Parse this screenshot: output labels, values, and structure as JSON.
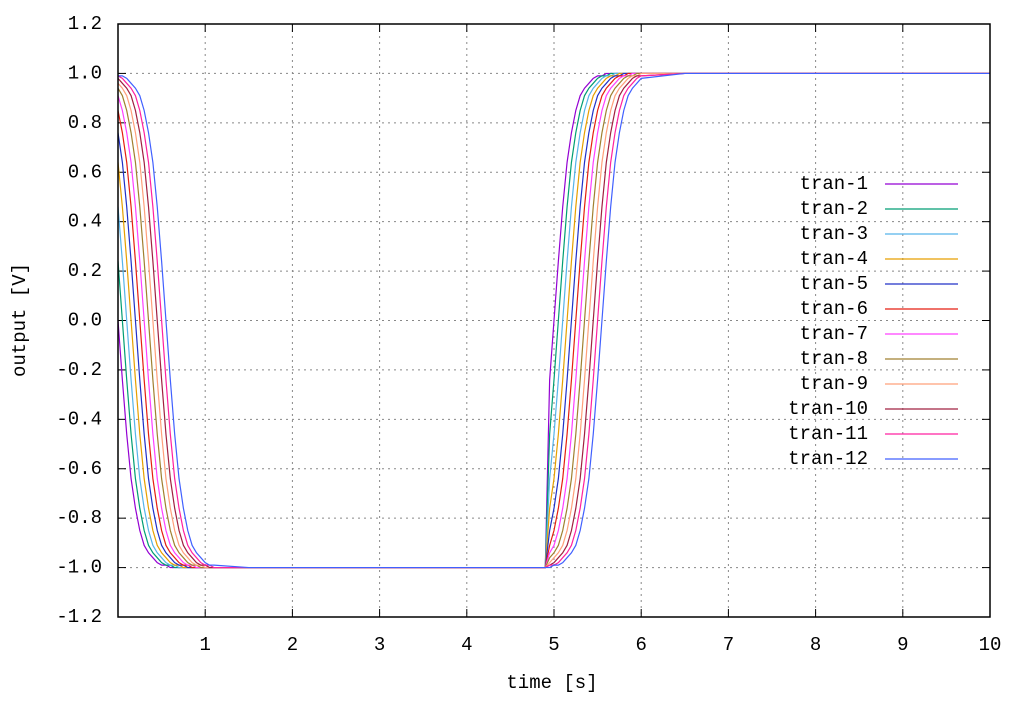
{
  "chart_data": {
    "type": "line",
    "x_label": "time [s]",
    "y_label": "output [V]",
    "xlim": [
      0,
      10
    ],
    "ylim": [
      -1.2,
      1.2
    ],
    "xticks": [
      1,
      2,
      3,
      4,
      5,
      6,
      7,
      8,
      9,
      10
    ],
    "yticks": [
      -1.2,
      {
        "value": -1.0,
        "label": "-1.0"
      },
      -0.8,
      -0.6,
      -0.4,
      -0.2,
      {
        "value": 0.0,
        "label": "0.0"
      },
      0.2,
      0.4,
      0.6,
      0.8,
      {
        "value": 1.0,
        "label": "1.0"
      },
      1.2
    ],
    "grid": true,
    "legend_position": "right",
    "x": [
      0,
      0.05,
      0.1,
      0.15,
      0.2,
      0.25,
      0.3,
      0.35,
      0.4,
      0.45,
      0.5,
      0.55,
      0.6,
      0.65,
      0.7,
      0.75,
      0.8,
      0.85,
      0.9,
      0.95,
      1,
      1.05,
      1.1,
      1.5,
      4.9,
      4.95,
      5,
      5.05,
      5.1,
      5.15,
      5.2,
      5.25,
      5.3,
      5.35,
      5.4,
      5.45,
      5.5,
      5.55,
      5.6,
      5.65,
      5.7,
      5.75,
      5.8,
      5.85,
      5.9,
      5.95,
      6,
      6.5,
      10
    ],
    "series": [
      {
        "name": "tran-1",
        "color": "#9400d3",
        "values": [
          0,
          -0.24,
          -0.46,
          -0.64,
          -0.76,
          -0.85,
          -0.91,
          -0.94,
          -0.96,
          -0.98,
          -0.99,
          -0.99,
          -1,
          -1,
          -1,
          -1,
          -1,
          -1,
          -1,
          -1,
          -1,
          -1,
          -1,
          -1,
          -1,
          -0.24,
          0,
          0.24,
          0.46,
          0.64,
          0.76,
          0.85,
          0.91,
          0.94,
          0.96,
          0.98,
          0.99,
          0.99,
          1,
          1,
          1,
          1,
          1,
          1,
          1,
          1,
          1,
          1,
          1
        ]
      },
      {
        "name": "tran-2",
        "color": "#009e73",
        "values": [
          0.24,
          0,
          -0.24,
          -0.46,
          -0.64,
          -0.76,
          -0.85,
          -0.91,
          -0.94,
          -0.96,
          -0.98,
          -0.99,
          -0.99,
          -1,
          -1,
          -1,
          -1,
          -1,
          -1,
          -1,
          -1,
          -1,
          -1,
          -1,
          -1,
          -0.46,
          -0.24,
          0,
          0.24,
          0.46,
          0.64,
          0.76,
          0.85,
          0.91,
          0.94,
          0.96,
          0.98,
          0.99,
          0.99,
          1,
          1,
          1,
          1,
          1,
          1,
          1,
          1,
          1,
          1
        ]
      },
      {
        "name": "tran-3",
        "color": "#56b4e9",
        "values": [
          0.46,
          0.24,
          0,
          -0.24,
          -0.46,
          -0.64,
          -0.76,
          -0.85,
          -0.91,
          -0.94,
          -0.96,
          -0.98,
          -0.99,
          -0.99,
          -1,
          -1,
          -1,
          -1,
          -1,
          -1,
          -1,
          -1,
          -1,
          -1,
          -1,
          -0.64,
          -0.46,
          -0.24,
          0,
          0.24,
          0.46,
          0.64,
          0.76,
          0.85,
          0.91,
          0.94,
          0.96,
          0.98,
          0.99,
          0.99,
          1,
          1,
          1,
          1,
          1,
          1,
          1,
          1,
          1
        ]
      },
      {
        "name": "tran-4",
        "color": "#e69f00",
        "values": [
          0.64,
          0.46,
          0.24,
          0,
          -0.24,
          -0.46,
          -0.64,
          -0.76,
          -0.85,
          -0.91,
          -0.94,
          -0.96,
          -0.98,
          -0.99,
          -0.99,
          -1,
          -1,
          -1,
          -1,
          -1,
          -1,
          -1,
          -1,
          -1,
          -1,
          -0.76,
          -0.64,
          -0.46,
          -0.24,
          0,
          0.24,
          0.46,
          0.64,
          0.76,
          0.85,
          0.91,
          0.94,
          0.96,
          0.98,
          0.99,
          0.99,
          1,
          1,
          1,
          1,
          1,
          1,
          1,
          1
        ]
      },
      {
        "name": "tran-5",
        "color": "#2030c8",
        "values": [
          0.76,
          0.64,
          0.46,
          0.24,
          0,
          -0.24,
          -0.46,
          -0.64,
          -0.76,
          -0.85,
          -0.91,
          -0.94,
          -0.96,
          -0.98,
          -0.99,
          -0.99,
          -1,
          -1,
          -1,
          -1,
          -1,
          -1,
          -1,
          -1,
          -1,
          -0.85,
          -0.76,
          -0.64,
          -0.46,
          -0.24,
          0,
          0.24,
          0.46,
          0.64,
          0.76,
          0.85,
          0.91,
          0.94,
          0.96,
          0.98,
          0.99,
          0.99,
          1,
          1,
          1,
          1,
          1,
          1,
          1
        ]
      },
      {
        "name": "tran-6",
        "color": "#e51e10",
        "values": [
          0.85,
          0.76,
          0.64,
          0.46,
          0.24,
          0,
          -0.24,
          -0.46,
          -0.64,
          -0.76,
          -0.85,
          -0.91,
          -0.94,
          -0.96,
          -0.98,
          -0.99,
          -0.99,
          -1,
          -1,
          -1,
          -1,
          -1,
          -1,
          -1,
          -1,
          -0.91,
          -0.85,
          -0.76,
          -0.64,
          -0.46,
          -0.24,
          0,
          0.24,
          0.46,
          0.64,
          0.76,
          0.85,
          0.91,
          0.94,
          0.96,
          0.98,
          0.99,
          0.99,
          1,
          1,
          1,
          1,
          1,
          1
        ]
      },
      {
        "name": "tran-7",
        "color": "#ff40ff",
        "values": [
          0.91,
          0.85,
          0.76,
          0.64,
          0.46,
          0.24,
          0,
          -0.24,
          -0.46,
          -0.64,
          -0.76,
          -0.85,
          -0.91,
          -0.94,
          -0.96,
          -0.98,
          -0.99,
          -0.99,
          -1,
          -1,
          -1,
          -1,
          -1,
          -1,
          -1,
          -0.94,
          -0.91,
          -0.85,
          -0.76,
          -0.64,
          -0.46,
          -0.24,
          0,
          0.24,
          0.46,
          0.64,
          0.76,
          0.85,
          0.91,
          0.94,
          0.96,
          0.98,
          0.99,
          0.99,
          1,
          1,
          1,
          1,
          1
        ]
      },
      {
        "name": "tran-8",
        "color": "#a08030",
        "values": [
          0.94,
          0.91,
          0.85,
          0.76,
          0.64,
          0.46,
          0.24,
          0,
          -0.24,
          -0.46,
          -0.64,
          -0.76,
          -0.85,
          -0.91,
          -0.94,
          -0.96,
          -0.98,
          -0.99,
          -0.99,
          -1,
          -1,
          -1,
          -1,
          -1,
          -1,
          -0.96,
          -0.94,
          -0.91,
          -0.85,
          -0.76,
          -0.64,
          -0.46,
          -0.24,
          0,
          0.24,
          0.46,
          0.64,
          0.76,
          0.85,
          0.91,
          0.94,
          0.96,
          0.98,
          0.99,
          0.99,
          1,
          1,
          1,
          1
        ]
      },
      {
        "name": "tran-9",
        "color": "#ffa07a",
        "values": [
          0.96,
          0.94,
          0.91,
          0.85,
          0.76,
          0.64,
          0.46,
          0.24,
          0,
          -0.24,
          -0.46,
          -0.64,
          -0.76,
          -0.85,
          -0.91,
          -0.94,
          -0.96,
          -0.98,
          -0.99,
          -0.99,
          -1,
          -1,
          -1,
          -1,
          -1,
          -0.98,
          -0.96,
          -0.94,
          -0.91,
          -0.85,
          -0.76,
          -0.64,
          -0.46,
          -0.24,
          0,
          0.24,
          0.46,
          0.64,
          0.76,
          0.85,
          0.91,
          0.94,
          0.96,
          0.98,
          0.99,
          0.99,
          1,
          1,
          1
        ]
      },
      {
        "name": "tran-10",
        "color": "#a02040",
        "values": [
          0.98,
          0.96,
          0.94,
          0.91,
          0.85,
          0.76,
          0.64,
          0.46,
          0.24,
          0,
          -0.24,
          -0.46,
          -0.64,
          -0.76,
          -0.85,
          -0.91,
          -0.94,
          -0.96,
          -0.98,
          -0.99,
          -0.99,
          -1,
          -1,
          -1,
          -1,
          -0.99,
          -0.98,
          -0.96,
          -0.94,
          -0.91,
          -0.85,
          -0.76,
          -0.64,
          -0.46,
          -0.24,
          0,
          0.24,
          0.46,
          0.64,
          0.76,
          0.85,
          0.91,
          0.94,
          0.96,
          0.98,
          0.99,
          0.99,
          1,
          1
        ]
      },
      {
        "name": "tran-11",
        "color": "#ff20a0",
        "values": [
          0.99,
          0.98,
          0.96,
          0.94,
          0.91,
          0.85,
          0.76,
          0.64,
          0.46,
          0.24,
          0,
          -0.24,
          -0.46,
          -0.64,
          -0.76,
          -0.85,
          -0.91,
          -0.94,
          -0.96,
          -0.98,
          -0.99,
          -0.99,
          -1,
          -1,
          -1,
          -0.99,
          -0.99,
          -0.98,
          -0.96,
          -0.94,
          -0.91,
          -0.85,
          -0.76,
          -0.64,
          -0.46,
          -0.24,
          0,
          0.24,
          0.46,
          0.64,
          0.76,
          0.85,
          0.91,
          0.94,
          0.96,
          0.98,
          0.99,
          1,
          1
        ]
      },
      {
        "name": "tran-12",
        "color": "#4060ff",
        "values": [
          0.99,
          0.99,
          0.98,
          0.96,
          0.94,
          0.91,
          0.85,
          0.76,
          0.64,
          0.46,
          0.24,
          0,
          -0.24,
          -0.46,
          -0.64,
          -0.76,
          -0.85,
          -0.91,
          -0.94,
          -0.96,
          -0.98,
          -0.99,
          -0.99,
          -1,
          -1,
          -1,
          -0.99,
          -0.99,
          -0.98,
          -0.96,
          -0.94,
          -0.91,
          -0.85,
          -0.76,
          -0.64,
          -0.46,
          -0.24,
          0,
          0.24,
          0.46,
          0.64,
          0.76,
          0.85,
          0.91,
          0.94,
          0.96,
          0.98,
          1,
          1
        ]
      }
    ]
  }
}
